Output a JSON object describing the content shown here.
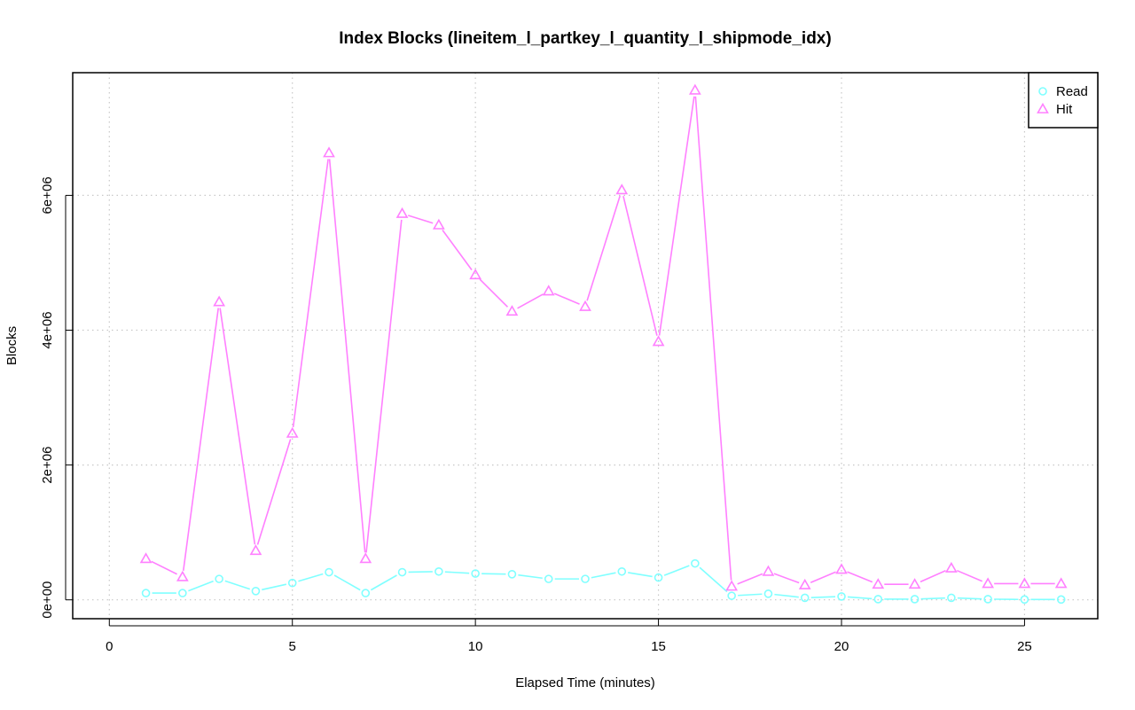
{
  "chart_data": {
    "type": "line",
    "title": "Index Blocks (lineitem_l_partkey_l_quantity_l_shipmode_idx)",
    "xlabel": "Elapsed Time (minutes)",
    "ylabel": "Blocks",
    "xlim": [
      -1,
      27
    ],
    "ylim": [
      -280000,
      7820000
    ],
    "x_ticks": [
      0,
      5,
      10,
      15,
      20,
      25
    ],
    "x_tick_labels": [
      "0",
      "5",
      "10",
      "15",
      "20",
      "25"
    ],
    "y_ticks": [
      0,
      2000000,
      4000000,
      6000000
    ],
    "y_tick_labels": [
      "0e+00",
      "2e+06",
      "4e+06",
      "6e+06"
    ],
    "grid": true,
    "legend_position": "top-right",
    "x": [
      1,
      2,
      3,
      4,
      5,
      6,
      7,
      8,
      9,
      10,
      11,
      12,
      13,
      14,
      15,
      16,
      17,
      18,
      19,
      20,
      21,
      22,
      23,
      24,
      25,
      26
    ],
    "series": [
      {
        "name": "Read",
        "color": "#80ffff",
        "marker": "circle",
        "values": [
          100000,
          100000,
          310000,
          130000,
          250000,
          410000,
          100000,
          410000,
          420000,
          390000,
          380000,
          310000,
          310000,
          420000,
          330000,
          540000,
          60000,
          90000,
          30000,
          50000,
          10000,
          10000,
          30000,
          10000,
          5000,
          5000
        ]
      },
      {
        "name": "Hit",
        "color": "#ff80ff",
        "marker": "triangle",
        "values": [
          610000,
          340000,
          4420000,
          730000,
          2470000,
          6630000,
          610000,
          5730000,
          5560000,
          4820000,
          4280000,
          4580000,
          4350000,
          6080000,
          3830000,
          7560000,
          200000,
          420000,
          220000,
          450000,
          230000,
          230000,
          470000,
          240000,
          240000,
          240000
        ]
      }
    ]
  }
}
